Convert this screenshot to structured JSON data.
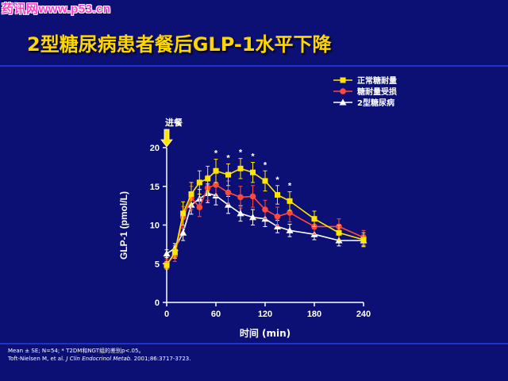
{
  "watermark": "药讯网www.p53.cn",
  "slide_title": "2型糖尿病患者餐后GLP-1水平下降",
  "footnote": {
    "line1": "Mean ± SE; N=54; * T2DM和NGT组的差别p<.05。",
    "line2_authors": "Toft-Nielsen M, et al. ",
    "line2_journal": "J Clin Endocrinol Metab.",
    "line2_rest": " 2001;86:3717-3723."
  },
  "colors": {
    "background": "#0c1075",
    "title": "#ffd700",
    "normal": "#ffe600",
    "impaired": "#ff4a3a",
    "diabetes": "#ffffff"
  },
  "chart_data": {
    "type": "line",
    "xlabel": "时间 (min)",
    "ylabel": "GLP-1 (pmol/L)",
    "xlim": [
      0,
      240
    ],
    "ylim": [
      0,
      20
    ],
    "xticks": [
      0,
      60,
      120,
      180,
      240
    ],
    "yticks": [
      0,
      5,
      10,
      15,
      20
    ],
    "grid": false,
    "legend_position": "top-right",
    "meal_annotation": {
      "label": "进餐",
      "x": 0
    },
    "series": [
      {
        "name": "正常糖耐量",
        "marker": "square",
        "color": "#ffe600",
        "x": [
          0,
          10,
          20,
          30,
          40,
          50,
          60,
          75,
          90,
          105,
          120,
          135,
          150,
          180,
          210,
          240
        ],
        "y": [
          4.8,
          6.5,
          11.5,
          14.0,
          15.5,
          16.0,
          17.0,
          16.5,
          17.3,
          16.8,
          15.7,
          13.9,
          13.1,
          10.8,
          9.0,
          8.1
        ],
        "err": [
          0.5,
          0.8,
          1.5,
          1.5,
          1.5,
          1.6,
          1.5,
          1.4,
          1.3,
          1.3,
          1.3,
          1.2,
          1.2,
          1.0,
          1.0,
          0.9
        ]
      },
      {
        "name": "糖耐量受损",
        "marker": "circle",
        "color": "#ff4a3a",
        "x": [
          0,
          10,
          20,
          30,
          40,
          50,
          60,
          75,
          90,
          105,
          120,
          135,
          150,
          180,
          210,
          240
        ],
        "y": [
          5.0,
          6.1,
          11.0,
          13.5,
          12.3,
          14.8,
          15.2,
          14.2,
          13.6,
          13.7,
          12.0,
          11.1,
          11.6,
          9.8,
          9.8,
          8.4
        ],
        "err": [
          0.6,
          0.8,
          1.4,
          1.5,
          1.2,
          1.6,
          1.5,
          1.5,
          1.4,
          1.4,
          1.2,
          1.2,
          1.2,
          1.0,
          1.0,
          0.9
        ]
      },
      {
        "name": "2型糖尿病",
        "marker": "triangle",
        "color": "#ffffff",
        "x": [
          0,
          10,
          20,
          30,
          40,
          50,
          60,
          75,
          90,
          105,
          120,
          135,
          150,
          180,
          210,
          240
        ],
        "y": [
          6.3,
          7.0,
          9.0,
          12.6,
          13.4,
          14.1,
          13.8,
          12.6,
          11.5,
          11.0,
          10.8,
          9.8,
          9.3,
          8.8,
          8.0,
          8.0
        ],
        "err": [
          0.5,
          0.6,
          1.0,
          1.2,
          1.2,
          1.2,
          1.2,
          1.1,
          1.0,
          1.0,
          1.0,
          0.8,
          0.8,
          0.7,
          0.7,
          0.7
        ]
      }
    ],
    "significance": {
      "symbol": "*",
      "x": [
        60,
        75,
        90,
        105,
        120,
        135,
        150
      ]
    }
  }
}
